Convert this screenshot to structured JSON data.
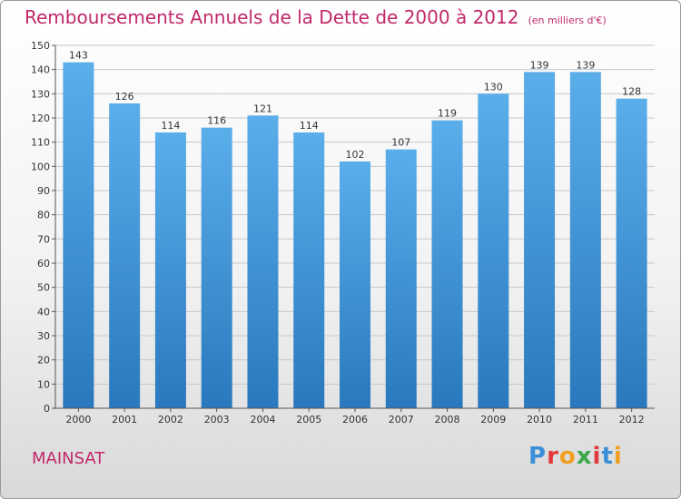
{
  "header": {
    "title": "Remboursements Annuels de la Dette de 2000 à 2012",
    "unit": "(en milliers d'€)"
  },
  "footer": {
    "commune": "MAINSAT",
    "logo": "Proxiti"
  },
  "colors": {
    "title": "#c0286a",
    "bar_light": "#5aaeea",
    "bar_dark": "#2a78bd",
    "grid": "#c8c8c8"
  },
  "chart_data": {
    "type": "bar",
    "title": "Remboursements Annuels de la Dette de 2000 à 2012",
    "xlabel": "",
    "ylabel": "(en milliers d'€)",
    "categories": [
      "2000",
      "2001",
      "2002",
      "2003",
      "2004",
      "2005",
      "2006",
      "2007",
      "2008",
      "2009",
      "2010",
      "2011",
      "2012"
    ],
    "values": [
      143,
      126,
      114,
      116,
      121,
      114,
      102,
      107,
      119,
      130,
      139,
      139,
      128
    ],
    "ylim": [
      0,
      150
    ],
    "yticks": [
      0,
      10,
      20,
      30,
      40,
      50,
      60,
      70,
      80,
      90,
      100,
      110,
      120,
      130,
      140,
      150
    ],
    "grid": true
  }
}
